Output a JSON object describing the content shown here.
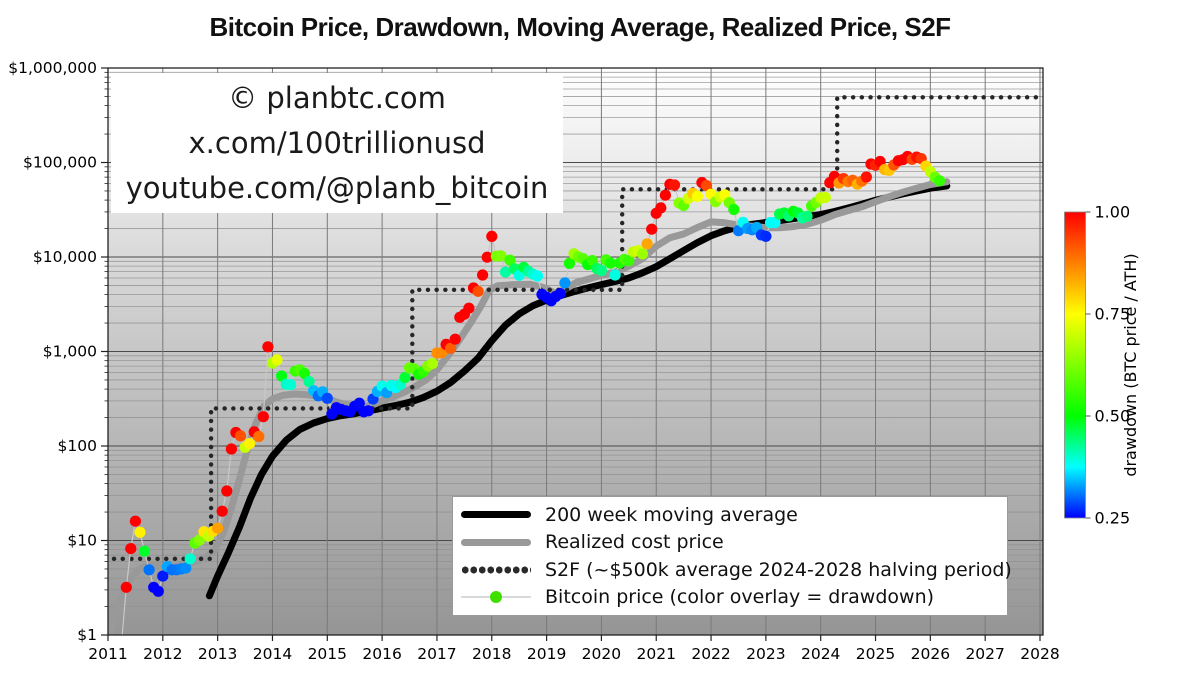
{
  "title": "Bitcoin Price, Drawdown, Moving Average, Realized Price, S2F",
  "watermark": {
    "line1": "© planbtc.com",
    "line2": "x.com/100trillionusd",
    "line3": "youtube.com/@planb_bitcoin"
  },
  "legend": {
    "items": [
      {
        "label": "200 week moving average"
      },
      {
        "label": "Realized cost price"
      },
      {
        "label": "S2F (~$500k average 2024-2028 halving period)"
      },
      {
        "label": "Bitcoin price (color overlay = drawdown)"
      }
    ]
  },
  "colorbar": {
    "label": "drawdown (BTC price /  ATH)",
    "ticks": [
      {
        "value": 1.0,
        "label": "1.00"
      },
      {
        "value": 0.75,
        "label": "0.75"
      },
      {
        "value": 0.5,
        "label": "0.50"
      },
      {
        "value": 0.25,
        "label": "0.25"
      }
    ],
    "min": 0.25,
    "max": 1.0
  },
  "axes": {
    "x_ticks": [
      "2011",
      "2012",
      "2013",
      "2014",
      "2015",
      "2016",
      "2017",
      "2018",
      "2019",
      "2020",
      "2021",
      "2022",
      "2023",
      "2024",
      "2025",
      "2026",
      "2027",
      "2028"
    ],
    "y_ticks": [
      {
        "value": 1000000,
        "label": "$1,000,000"
      },
      {
        "value": 100000,
        "label": "$100,000"
      },
      {
        "value": 10000,
        "label": "$10,000"
      },
      {
        "value": 1000,
        "label": "$1,000"
      },
      {
        "value": 100,
        "label": "$100"
      },
      {
        "value": 10,
        "label": "$10"
      },
      {
        "value": 1,
        "label": "$1"
      }
    ]
  },
  "chart_data": {
    "type": "line+scatter",
    "log_y": true,
    "xlim": [
      2011,
      2028.06
    ],
    "ylim": [
      1,
      1000000
    ],
    "drawdown_rule": "dot color = monthly price / running ATH, clamped 0.25-1.00",
    "colors": {
      "wma200": "#000000",
      "realized": "#999999",
      "s2f": "#262626",
      "price_line": "#c8c8c8",
      "grid_major": "#4a4a4a",
      "grid_minor": "#8f8f8f",
      "grid_year": "#7a7a7a",
      "bg_top": "#ffffff",
      "bg_mid": "#cccccc",
      "bg_bottom": "#959595"
    },
    "btc_monthly": {
      "start": "2011-01",
      "values": [
        0.45,
        0.9,
        0.86,
        3.2,
        8.2,
        16,
        12.2,
        7.7,
        4.9,
        3.2,
        2.9,
        4.2,
        5.3,
        4.9,
        4.9,
        5.0,
        5.1,
        6.4,
        9.4,
        10.1,
        12.4,
        11.1,
        12.5,
        13.5,
        20.4,
        33.4,
        93,
        139,
        128,
        97,
        106,
        141,
        126,
        204,
        1120,
        754,
        815,
        550,
        450,
        445,
        620,
        640,
        585,
        480,
        385,
        340,
        375,
        320,
        218,
        254,
        244,
        236,
        230,
        263,
        284,
        230,
        236,
        314,
        377,
        430,
        368,
        437,
        416,
        448,
        531,
        673,
        655,
        575,
        610,
        700,
        745,
        963,
        970,
        1190,
        1080,
        1350,
        2300,
        2480,
        2870,
        4700,
        4340,
        6450,
        9950,
        16500,
        10200,
        10300,
        6930,
        9240,
        7500,
        6400,
        7780,
        7040,
        6600,
        6300,
        4020,
        3740,
        3440,
        3820,
        4100,
        5320,
        8550,
        10800,
        10000,
        9600,
        8300,
        9150,
        7550,
        7190,
        9350,
        8600,
        6440,
        8620,
        9450,
        9140,
        11350,
        11650,
        10780,
        13800,
        19700,
        29000,
        33100,
        45100,
        58800,
        57750,
        37300,
        35000,
        41550,
        47150,
        43800,
        61300,
        57000,
        46200,
        38500,
        43200,
        45500,
        37650,
        31800,
        19000,
        23300,
        20050,
        19400,
        20500,
        17150,
        16550,
        23100,
        23150,
        28500,
        29250,
        27200,
        30480,
        29230,
        25940,
        26960,
        34650,
        37700,
        42250,
        42580,
        61200,
        71300,
        60640,
        67500,
        62680,
        64600,
        58970,
        63330,
        70200,
        96400,
        93400,
        102400,
        84350,
        82550,
        94200,
        104600,
        107100,
        115800,
        108200,
        114000,
        110100,
        91500,
        80000,
        70000,
        64000
      ]
    },
    "wma200": [
      [
        2012.85,
        2.6
      ],
      [
        2013.0,
        4.2
      ],
      [
        2013.2,
        7.5
      ],
      [
        2013.4,
        14
      ],
      [
        2013.6,
        28
      ],
      [
        2013.8,
        50
      ],
      [
        2014.0,
        78
      ],
      [
        2014.25,
        115
      ],
      [
        2014.5,
        150
      ],
      [
        2014.75,
        175
      ],
      [
        2015.0,
        195
      ],
      [
        2015.25,
        210
      ],
      [
        2015.5,
        220
      ],
      [
        2015.75,
        235
      ],
      [
        2016.0,
        252
      ],
      [
        2016.25,
        268
      ],
      [
        2016.5,
        290
      ],
      [
        2016.75,
        325
      ],
      [
        2017.0,
        380
      ],
      [
        2017.25,
        470
      ],
      [
        2017.5,
        620
      ],
      [
        2017.75,
        850
      ],
      [
        2018.0,
        1300
      ],
      [
        2018.25,
        1900
      ],
      [
        2018.5,
        2500
      ],
      [
        2018.75,
        3050
      ],
      [
        2019.0,
        3500
      ],
      [
        2019.25,
        3900
      ],
      [
        2019.5,
        4300
      ],
      [
        2019.75,
        4700
      ],
      [
        2020.0,
        5100
      ],
      [
        2020.25,
        5500
      ],
      [
        2020.5,
        6000
      ],
      [
        2020.75,
        6800
      ],
      [
        2021.0,
        7900
      ],
      [
        2021.25,
        9600
      ],
      [
        2021.5,
        11700
      ],
      [
        2021.75,
        14200
      ],
      [
        2022.0,
        16800
      ],
      [
        2022.25,
        19000
      ],
      [
        2022.5,
        20800
      ],
      [
        2022.75,
        22200
      ],
      [
        2023.0,
        23200
      ],
      [
        2023.25,
        24200
      ],
      [
        2023.5,
        25400
      ],
      [
        2023.75,
        26700
      ],
      [
        2024.0,
        28200
      ],
      [
        2024.25,
        30300
      ],
      [
        2024.5,
        33000
      ],
      [
        2024.75,
        36200
      ],
      [
        2025.0,
        39800
      ],
      [
        2025.25,
        43000
      ],
      [
        2025.5,
        46500
      ],
      [
        2025.75,
        50000
      ],
      [
        2026.0,
        53500
      ],
      [
        2026.3,
        56500
      ]
    ],
    "realized": [
      [
        2010.95,
        0.7
      ],
      [
        2011.1,
        1.4
      ],
      [
        2011.25,
        2.4
      ],
      [
        2011.4,
        3.8
      ],
      [
        2011.55,
        4.9
      ],
      [
        2011.7,
        5.4
      ],
      [
        2011.85,
        5.6
      ],
      [
        2012.0,
        5.4
      ],
      [
        2012.2,
        5.3
      ],
      [
        2012.4,
        5.5
      ],
      [
        2012.6,
        6.0
      ],
      [
        2012.8,
        6.7
      ],
      [
        2012.95,
        8.0
      ],
      [
        2013.1,
        12
      ],
      [
        2013.25,
        22
      ],
      [
        2013.4,
        45
      ],
      [
        2013.55,
        95
      ],
      [
        2013.7,
        175
      ],
      [
        2013.85,
        265
      ],
      [
        2014.0,
        315
      ],
      [
        2014.2,
        345
      ],
      [
        2014.4,
        355
      ],
      [
        2014.6,
        350
      ],
      [
        2014.8,
        340
      ],
      [
        2015.0,
        315
      ],
      [
        2015.2,
        288
      ],
      [
        2015.4,
        270
      ],
      [
        2015.6,
        260
      ],
      [
        2015.8,
        268
      ],
      [
        2016.0,
        300
      ],
      [
        2016.2,
        330
      ],
      [
        2016.4,
        370
      ],
      [
        2016.6,
        425
      ],
      [
        2016.8,
        500
      ],
      [
        2017.0,
        640
      ],
      [
        2017.2,
        900
      ],
      [
        2017.4,
        1300
      ],
      [
        2017.6,
        1950
      ],
      [
        2017.8,
        3000
      ],
      [
        2017.95,
        4400
      ],
      [
        2018.1,
        4950
      ],
      [
        2018.4,
        5100
      ],
      [
        2018.7,
        5150
      ],
      [
        2018.95,
        4750
      ],
      [
        2019.15,
        4150
      ],
      [
        2019.35,
        4600
      ],
      [
        2019.55,
        5400
      ],
      [
        2019.75,
        5800
      ],
      [
        2020.0,
        6400
      ],
      [
        2020.25,
        6900
      ],
      [
        2020.5,
        8000
      ],
      [
        2020.75,
        9600
      ],
      [
        2021.0,
        13000
      ],
      [
        2021.25,
        16000
      ],
      [
        2021.5,
        17500
      ],
      [
        2021.75,
        20500
      ],
      [
        2022.0,
        23500
      ],
      [
        2022.25,
        23000
      ],
      [
        2022.5,
        21800
      ],
      [
        2022.75,
        21200
      ],
      [
        2023.0,
        20400
      ],
      [
        2023.25,
        20400
      ],
      [
        2023.5,
        21000
      ],
      [
        2023.75,
        22200
      ],
      [
        2024.0,
        24500
      ],
      [
        2024.25,
        28000
      ],
      [
        2024.5,
        31000
      ],
      [
        2024.75,
        34000
      ],
      [
        2025.0,
        38500
      ],
      [
        2025.25,
        43500
      ],
      [
        2025.5,
        48500
      ],
      [
        2025.75,
        53500
      ],
      [
        2026.0,
        58500
      ],
      [
        2026.3,
        62500
      ]
    ],
    "s2f": [
      [
        2010.95,
        6.4
      ],
      [
        2012.88,
        6.4
      ],
      [
        2012.88,
        250
      ],
      [
        2016.55,
        250
      ],
      [
        2016.55,
        4500
      ],
      [
        2020.38,
        4500
      ],
      [
        2020.38,
        52000
      ],
      [
        2024.3,
        52000
      ],
      [
        2024.3,
        490000
      ],
      [
        2028.05,
        490000
      ]
    ]
  }
}
